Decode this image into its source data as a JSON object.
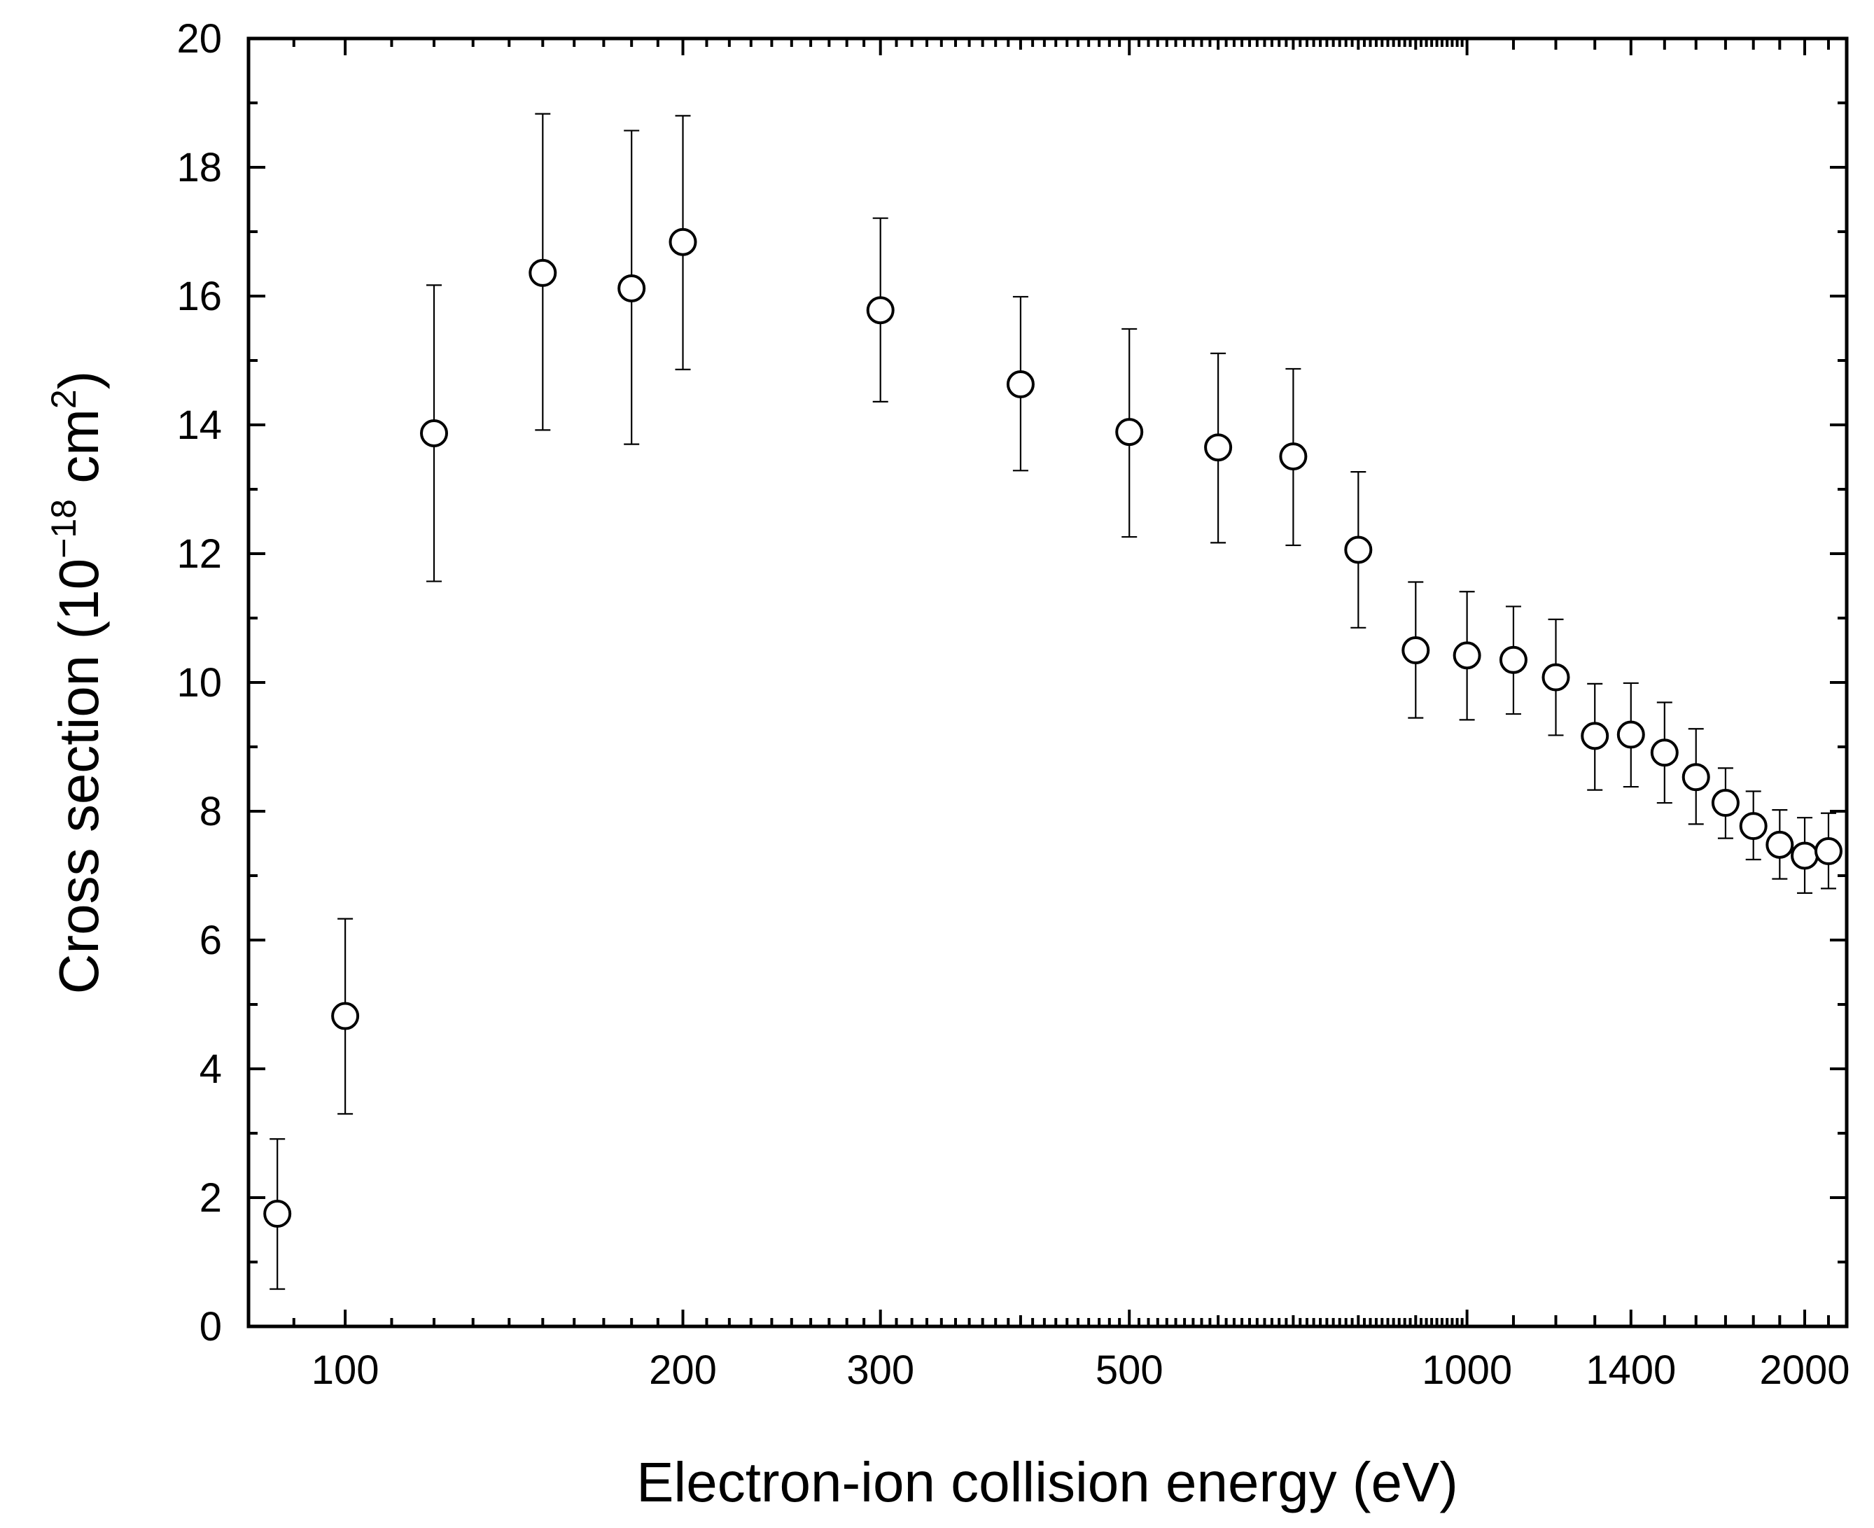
{
  "chart_data": {
    "type": "scatter",
    "title": "",
    "xlabel": "Electron-ion collision energy (eV)",
    "ylabel": {
      "text_before": "Cross section (10",
      "exponent": "−18",
      "text_middle": " cm",
      "unit_exponent": "2",
      "text_after": ")"
    },
    "xscale": "log",
    "xlim": [
      82,
      2180
    ],
    "ylim": [
      0,
      20
    ],
    "xticks_major": [
      100,
      200,
      300,
      500,
      1000,
      1400,
      2000
    ],
    "xtick_labels": [
      "100",
      "200",
      "300",
      "500",
      "1000",
      "1400",
      "2000"
    ],
    "yticks_major": [
      0,
      2,
      4,
      6,
      8,
      10,
      12,
      14,
      16,
      18,
      20
    ],
    "ytick_labels": [
      "0",
      "2",
      "4",
      "6",
      "8",
      "10",
      "12",
      "14",
      "16",
      "18",
      "20"
    ],
    "grid": false,
    "marker": "open-circle",
    "series": [
      {
        "name": "cross-section",
        "x": [
          87,
          100,
          120,
          150,
          180,
          200,
          300,
          400,
          500,
          600,
          700,
          800,
          900,
          1000,
          1100,
          1200,
          1300,
          1400,
          1500,
          1600,
          1700,
          1800,
          1900,
          2000,
          2100
        ],
        "y": [
          1.75,
          4.82,
          13.87,
          16.36,
          16.12,
          16.84,
          15.78,
          14.63,
          13.89,
          13.65,
          13.51,
          12.06,
          10.5,
          10.42,
          10.35,
          10.08,
          9.17,
          9.19,
          8.91,
          8.53,
          8.13,
          7.77,
          7.48,
          7.31,
          7.38
        ],
        "yerr_low": [
          0.58,
          3.3,
          11.57,
          13.92,
          13.7,
          14.86,
          14.36,
          13.29,
          12.26,
          12.17,
          12.13,
          10.85,
          9.45,
          9.42,
          9.51,
          9.18,
          8.33,
          8.38,
          8.13,
          7.8,
          7.58,
          7.25,
          6.95,
          6.73,
          6.8
        ],
        "yerr_high": [
          2.91,
          6.33,
          16.17,
          18.83,
          18.57,
          18.8,
          17.21,
          15.99,
          15.49,
          15.11,
          14.87,
          13.27,
          11.56,
          11.41,
          11.18,
          10.98,
          9.98,
          9.99,
          9.69,
          9.28,
          8.67,
          8.31,
          8.02,
          7.9,
          7.97
        ]
      }
    ]
  }
}
